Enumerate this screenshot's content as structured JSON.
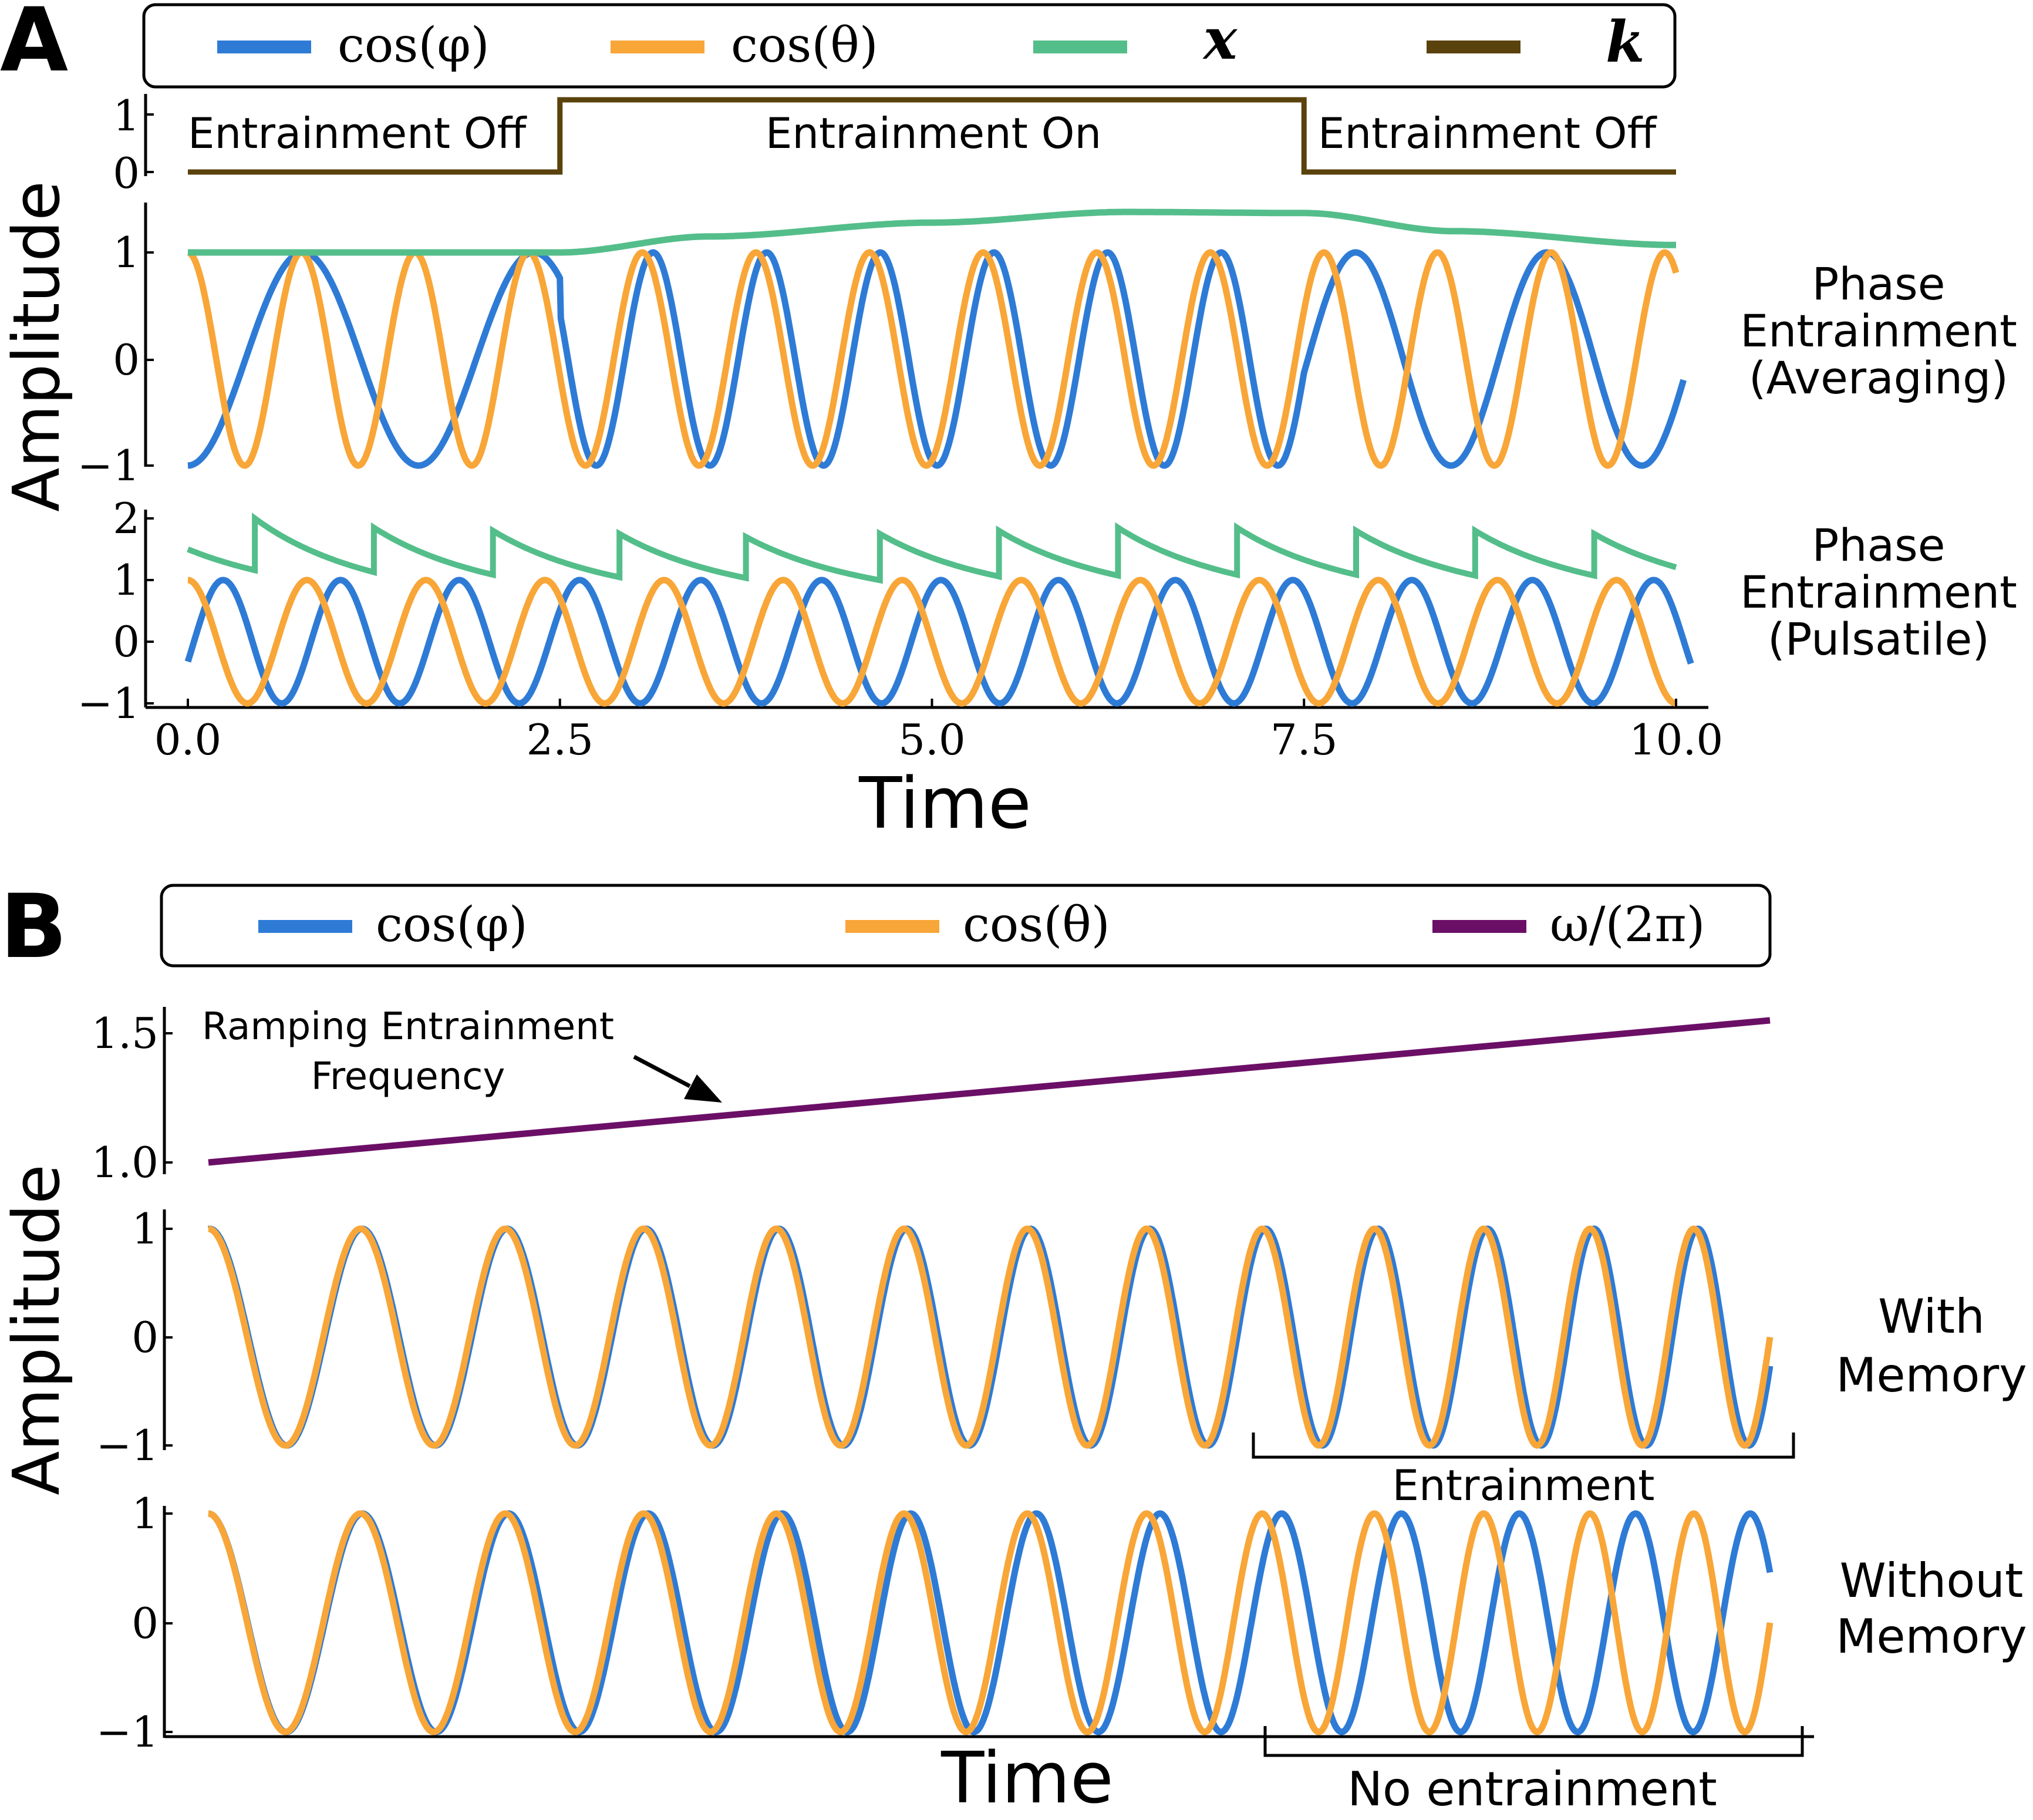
{
  "panels": {
    "A": {
      "letter": "A",
      "legend": [
        {
          "label": "cos(φ)",
          "color": "#2e7bd6"
        },
        {
          "label": "cos(θ)",
          "color": "#f8a638"
        },
        {
          "label": "x",
          "color": "#54be8a"
        },
        {
          "label": "k",
          "color": "#5a420c"
        }
      ],
      "xlabel": "Time",
      "ylabel": "Amplitude",
      "region_labels": [
        "Entrainment Off",
        "Entrainment On",
        "Entrainment Off"
      ],
      "row_labels": {
        "averaging": [
          "Phase",
          "Entrainment",
          "(Averaging)"
        ],
        "pulsatile": [
          "Phase",
          "Entrainment",
          "(Pulsatile)"
        ]
      }
    },
    "B": {
      "letter": "B",
      "legend": [
        {
          "label": "cos(φ)",
          "color": "#2e7bd6"
        },
        {
          "label": "cos(θ)",
          "color": "#f8a638"
        },
        {
          "label": "ω/(2π)",
          "color": "#6b0f66"
        }
      ],
      "xlabel": "Time",
      "ylabel": "Amplitude",
      "annotation": [
        "Ramping Entrainment",
        "Frequency"
      ],
      "row_labels": {
        "memory": [
          "With",
          "Memory"
        ],
        "nomemory": [
          "Without",
          "Memory"
        ]
      },
      "brackets": {
        "memory": "Entrainment",
        "nomemory": "No entrainment"
      }
    }
  },
  "chart_data": [
    {
      "type": "line",
      "name": "A-k",
      "xlim": [
        0,
        10
      ],
      "ylim": [
        0,
        1
      ],
      "yticks": [
        "0",
        "1"
      ],
      "series": [
        {
          "name": "k",
          "x": [
            0,
            2.5,
            2.5,
            7.5,
            7.5,
            10
          ],
          "y": [
            0,
            0,
            1,
            1,
            0,
            0
          ],
          "color": "#5a420c"
        }
      ]
    },
    {
      "type": "line",
      "name": "A-averaging",
      "xlim": [
        0,
        10
      ],
      "ylim": [
        -1,
        1.4
      ],
      "yticks": [
        "−1",
        "0",
        "1"
      ],
      "series": [
        {
          "name": "cos(φ)",
          "formula": "-cos(2*pi*t/1.55)",
          "t_on": 2.5,
          "t_off": 7.5,
          "freq_on": 1.31,
          "color": "#2e7bd6"
        },
        {
          "name": "cos(θ)",
          "formula": "cos(2*pi*1.31*t)",
          "color": "#f8a638"
        },
        {
          "name": "x",
          "x": [
            0,
            2.5,
            3.5,
            5,
            6.3,
            7.5,
            8.5,
            10
          ],
          "y": [
            1.0,
            1.0,
            1.15,
            1.28,
            1.38,
            1.37,
            1.2,
            1.07
          ],
          "color": "#54be8a"
        }
      ]
    },
    {
      "type": "line",
      "name": "A-pulsatile",
      "xlim": [
        0,
        10
      ],
      "ylim": [
        -1,
        2
      ],
      "yticks": [
        "−1",
        "0",
        "1",
        "2"
      ],
      "series": [
        {
          "name": "cos(φ)",
          "color": "#2e7bd6"
        },
        {
          "name": "cos(θ)",
          "color": "#f8a638"
        },
        {
          "name": "x",
          "pulse_times": [
            0.45,
            1.25,
            2.05,
            2.9,
            3.75,
            4.65,
            5.45,
            6.25,
            7.05,
            7.85,
            8.65,
            9.45
          ],
          "peak_values": [
            2.0,
            1.85,
            1.8,
            1.75,
            1.7,
            1.75,
            1.8,
            1.85,
            1.85,
            1.8,
            1.8,
            1.75
          ],
          "color": "#54be8a"
        }
      ],
      "xticks": [
        "0.0",
        "2.5",
        "5.0",
        "7.5",
        "10.0"
      ]
    },
    {
      "type": "line",
      "name": "B-frequency",
      "xlim": [
        0,
        10
      ],
      "ylim": [
        1.0,
        1.5
      ],
      "yticks": [
        "1.0",
        "1.5"
      ],
      "series": [
        {
          "name": "ω/(2π)",
          "x": [
            0,
            10
          ],
          "y": [
            1.0,
            1.55
          ],
          "color": "#6b0f66"
        }
      ]
    },
    {
      "type": "line",
      "name": "B-with-memory",
      "xlim": [
        0,
        10
      ],
      "ylim": [
        -1,
        1
      ],
      "yticks": [
        "−1",
        "0",
        "1"
      ],
      "series": [
        {
          "name": "cos(φ)",
          "color": "#2e7bd6"
        },
        {
          "name": "cos(θ)",
          "color": "#f8a638"
        }
      ]
    },
    {
      "type": "line",
      "name": "B-without-memory",
      "xlim": [
        0,
        10
      ],
      "ylim": [
        -1,
        1
      ],
      "yticks": [
        "−1",
        "0",
        "1"
      ],
      "series": [
        {
          "name": "cos(φ)",
          "color": "#2e7bd6"
        },
        {
          "name": "cos(θ)",
          "color": "#f8a638"
        }
      ]
    }
  ]
}
